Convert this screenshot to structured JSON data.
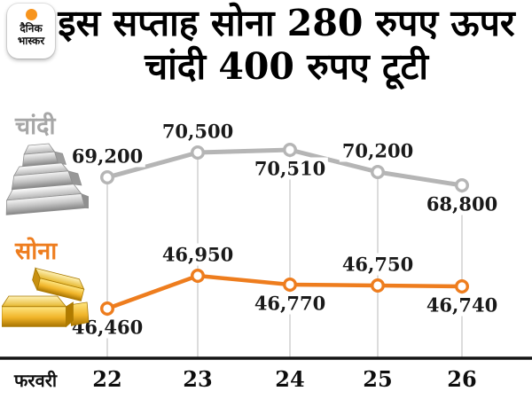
{
  "logo": {
    "line1": "दैनिक",
    "line2": "भास्कर",
    "dot_color": "#f7941d"
  },
  "title": {
    "line1": "इस सप्ताह सोना 280 रुपए ऊपर",
    "line2": "चांदी 400 रुपए टूटी"
  },
  "icons": {
    "silver": "silver-bars-icon",
    "gold": "gold-bars-icon"
  },
  "colors": {
    "gold_accent": "#ee7d1e",
    "silver_accent": "#b5b5b5",
    "grid": "#c9c9c9",
    "axis": "#141414"
  },
  "chart_data": {
    "type": "line",
    "title": "इस सप्ताह सोना 280 रुपए ऊपर चांदी 400 रुपए टूटी",
    "grid": "vertical-only",
    "legend_position": "left",
    "x": {
      "unit_label": "फरवरी",
      "categories": [
        "22",
        "23",
        "24",
        "25",
        "26"
      ]
    },
    "series": [
      {
        "name": "चांदी",
        "name_en": "silver",
        "color": "#b5b5b5",
        "values": [
          69200,
          70500,
          70510,
          70200,
          68800
        ],
        "point_labels": [
          "69,200",
          "70,500",
          "70,510",
          "70,200",
          "68,800"
        ],
        "label_side": [
          "above",
          "above",
          "below",
          "above",
          "below"
        ]
      },
      {
        "name": "सोना",
        "name_en": "gold",
        "color": "#ee7d1e",
        "values": [
          46460,
          46950,
          46770,
          46750,
          46740
        ],
        "point_labels": [
          "46,460",
          "46,950",
          "46,770",
          "46,750",
          "46,740"
        ],
        "label_side": [
          "below",
          "above",
          "below",
          "above",
          "below"
        ]
      }
    ]
  }
}
